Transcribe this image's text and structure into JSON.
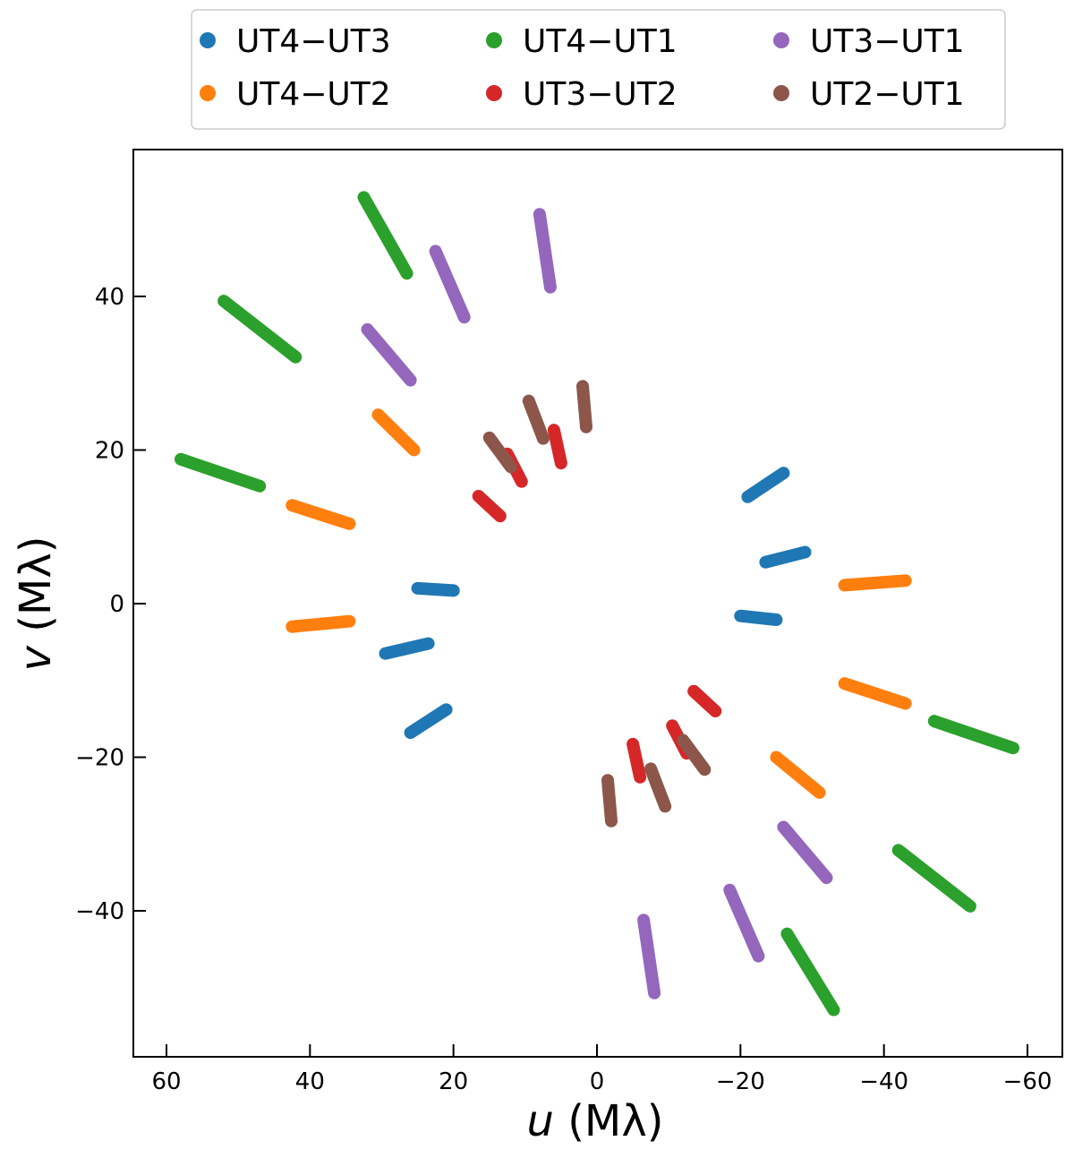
{
  "chart_data": {
    "type": "scatter",
    "title": "",
    "xlabel_var": "u",
    "xlabel_unit": " (Mλ)",
    "ylabel_var": "v",
    "ylabel_unit": " (Mλ)",
    "xlim": [
      64,
      -65
    ],
    "ylim": [
      -59,
      59
    ],
    "xaxis_inverted": true,
    "x_ticks": [
      60,
      40,
      20,
      0,
      -20,
      -40,
      -60
    ],
    "x_tick_labels": [
      "60",
      "40",
      "20",
      "0",
      "−20",
      "−40",
      "−60"
    ],
    "y_ticks": [
      40,
      20,
      0,
      -20,
      -40
    ],
    "y_tick_labels": [
      "40",
      "20",
      "0",
      "−20",
      "−40"
    ],
    "grid": false,
    "legend_position": "top-center-outside",
    "legend_columns": 3,
    "series": [
      {
        "name": "UT4−UT3",
        "color": "#1f77b4",
        "segments": [
          [
            [
              -21,
              13.9
            ],
            [
              -26,
              17
            ]
          ],
          [
            [
              -23.5,
              5.4
            ],
            [
              -29,
              6.7
            ]
          ],
          [
            [
              -20,
              -1.6
            ],
            [
              -25,
              -2.1
            ]
          ],
          [
            [
              25,
              2
            ],
            [
              20,
              1.7
            ]
          ],
          [
            [
              29.5,
              -6.5
            ],
            [
              23.5,
              -5.2
            ]
          ],
          [
            [
              26,
              -16.8
            ],
            [
              21,
              -13.8
            ]
          ]
        ]
      },
      {
        "name": "UT4−UT2",
        "color": "#ff7f0e",
        "segments": [
          [
            [
              30.5,
              24.6
            ],
            [
              25.5,
              20
            ]
          ],
          [
            [
              42.5,
              12.8
            ],
            [
              34.5,
              10.4
            ]
          ],
          [
            [
              42.5,
              -3
            ],
            [
              34.5,
              -2.3
            ]
          ],
          [
            [
              -34.5,
              2.4
            ],
            [
              -43,
              3
            ]
          ],
          [
            [
              -34.5,
              -10.4
            ],
            [
              -43,
              -13
            ]
          ],
          [
            [
              -25,
              -20
            ],
            [
              -31,
              -24.6
            ]
          ]
        ]
      },
      {
        "name": "UT4−UT1",
        "color": "#2ca02c",
        "segments": [
          [
            [
              32.5,
              52.9
            ],
            [
              26.5,
              43
            ]
          ],
          [
            [
              52,
              39.4
            ],
            [
              42,
              32.1
            ]
          ],
          [
            [
              58,
              18.8
            ],
            [
              47,
              15.3
            ]
          ],
          [
            [
              -47,
              -15.3
            ],
            [
              -58,
              -18.8
            ]
          ],
          [
            [
              -42,
              -32.1
            ],
            [
              -52,
              -39.4
            ]
          ],
          [
            [
              -26.5,
              -43
            ],
            [
              -33,
              -52.9
            ]
          ]
        ]
      },
      {
        "name": "UT3−UT2",
        "color": "#d62728",
        "segments": [
          [
            [
              16.5,
              14
            ],
            [
              13.5,
              11.4
            ]
          ],
          [
            [
              12.5,
              19.5
            ],
            [
              10.5,
              15.9
            ]
          ],
          [
            [
              6,
              22.6
            ],
            [
              5,
              18.3
            ]
          ],
          [
            [
              -13.5,
              -11.4
            ],
            [
              -16.5,
              -14
            ]
          ],
          [
            [
              -10.5,
              -15.9
            ],
            [
              -12.5,
              -19.5
            ]
          ],
          [
            [
              -5,
              -18.3
            ],
            [
              -6,
              -22.6
            ]
          ]
        ]
      },
      {
        "name": "UT3−UT1",
        "color": "#9467bd",
        "segments": [
          [
            [
              8,
              50.7
            ],
            [
              6.5,
              41.2
            ]
          ],
          [
            [
              22.5,
              45.9
            ],
            [
              18.5,
              37.3
            ]
          ],
          [
            [
              32,
              35.7
            ],
            [
              26,
              29.1
            ]
          ],
          [
            [
              -26,
              -29.1
            ],
            [
              -32,
              -35.7
            ]
          ],
          [
            [
              -18.5,
              -37.3
            ],
            [
              -22.5,
              -45.9
            ]
          ],
          [
            [
              -6.5,
              -41.2
            ],
            [
              -8,
              -50.7
            ]
          ]
        ]
      },
      {
        "name": "UT2−UT1",
        "color": "#8c564b",
        "segments": [
          [
            [
              2,
              28.3
            ],
            [
              1.5,
              23
            ]
          ],
          [
            [
              9.5,
              26.4
            ],
            [
              7.5,
              21.5
            ]
          ],
          [
            [
              15,
              21.6
            ],
            [
              12,
              17.8
            ]
          ],
          [
            [
              -12,
              -17.8
            ],
            [
              -15,
              -21.6
            ]
          ],
          [
            [
              -7.5,
              -21.5
            ],
            [
              -9.5,
              -26.4
            ]
          ],
          [
            [
              -1.5,
              -23
            ],
            [
              -2,
              -28.3
            ]
          ]
        ]
      }
    ]
  }
}
